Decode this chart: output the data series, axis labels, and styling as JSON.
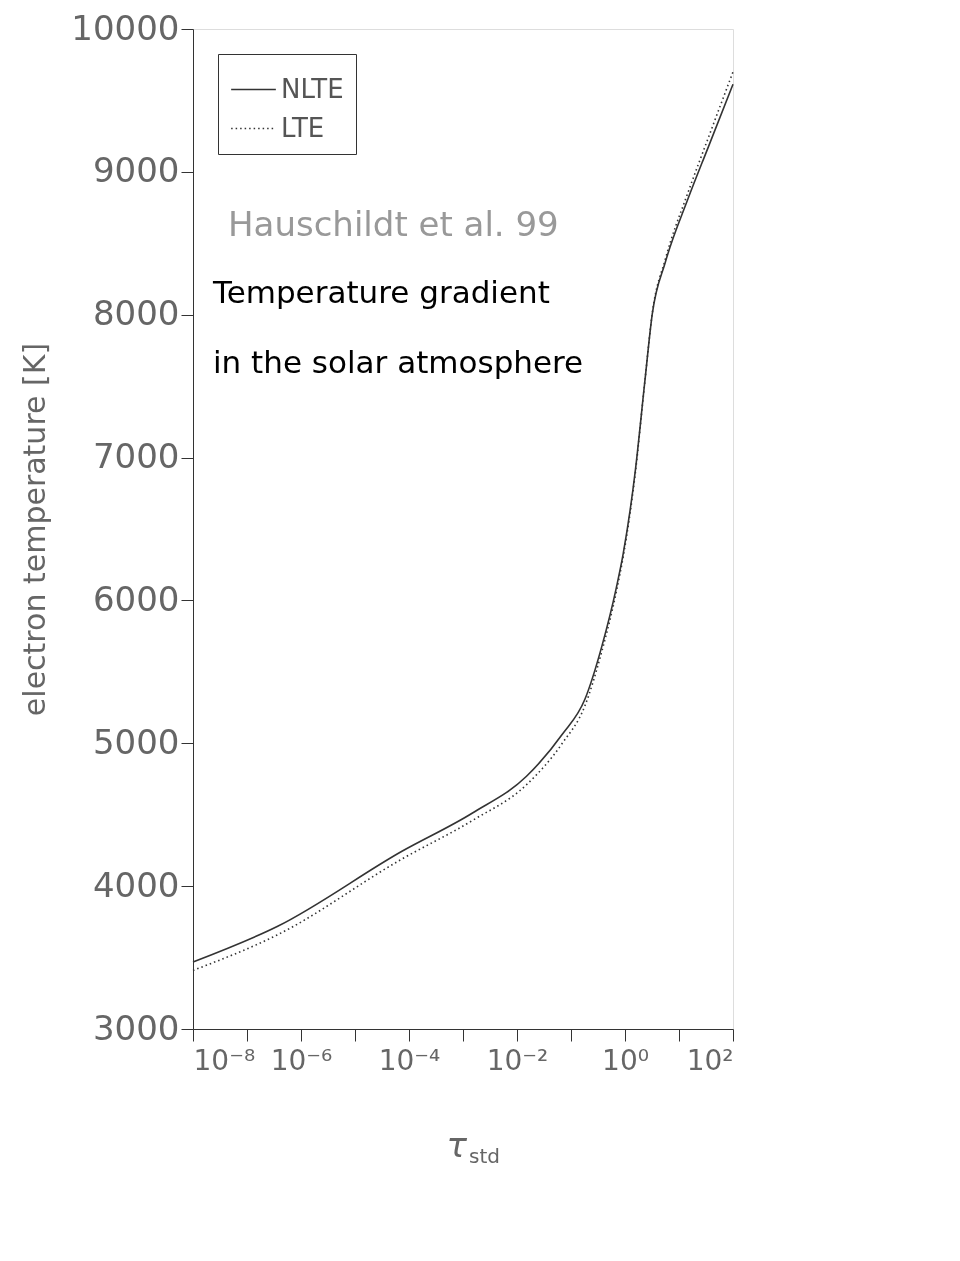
{
  "chart_data": {
    "type": "line",
    "xlabel": "τ$_{std}$",
    "ylabel": "electron temperature [K]",
    "annotations": [
      "Hauschildt et al. 99",
      "Temperature gradient\nin the solar atmosphere"
    ],
    "log": "x",
    "grid": false,
    "legend": "top left",
    "xlim": [
      1e-08,
      100
    ],
    "xticks": [
      {
        "value": 1e-08,
        "label": "10⁻⁸"
      },
      {
        "value": 1e-07,
        "label": null
      },
      {
        "value": 1e-06,
        "label": "10⁻⁶"
      },
      {
        "value": 1e-05,
        "label": null
      },
      {
        "value": 0.0001,
        "label": "10⁻⁴"
      },
      {
        "value": 0.001,
        "label": null
      },
      {
        "value": 0.01,
        "label": "10⁻²"
      },
      {
        "value": 0.1,
        "label": null
      },
      {
        "value": 1,
        "label": "10⁰"
      },
      {
        "value": 10,
        "label": null
      },
      {
        "value": 100,
        "label": "10²"
      }
    ],
    "ylim": [
      3000,
      10000
    ],
    "yticks": [
      3000,
      4000,
      5000,
      6000,
      7000,
      8000,
      9000,
      10000
    ],
    "series": [
      {
        "name": "NLTE",
        "color": "#333333",
        "line_style": "solid",
        "x": [
          1e-08,
          3.7e-07,
          7.4e-05,
          0.0015,
          0.015,
          0.069,
          0.18,
          0.37,
          0.69,
          0.93,
          1.55,
          2.3,
          3.2,
          5.6,
          14.5,
          35,
          100
        ],
        "values": [
          3469,
          3719,
          4244,
          4512,
          4769,
          5063,
          5306,
          5675,
          6088,
          6331,
          6906,
          7513,
          8006,
          8369,
          8806,
          9175,
          9613
        ]
      },
      {
        "name": "LTE",
        "color": "#333333",
        "line_style": "dotted",
        "x": [
          1e-08,
          3.7e-07,
          7.4e-05,
          0.0015,
          0.015,
          0.069,
          0.18,
          0.37,
          0.69,
          0.93,
          1.55,
          2.3,
          3.2,
          5.6,
          14.5,
          35,
          100
        ],
        "values": [
          3410,
          3660,
          4190,
          4460,
          4710,
          5000,
          5260,
          5640,
          6060,
          6310,
          6890,
          7510,
          8010,
          8390,
          8850,
          9240,
          9700
        ]
      }
    ]
  }
}
